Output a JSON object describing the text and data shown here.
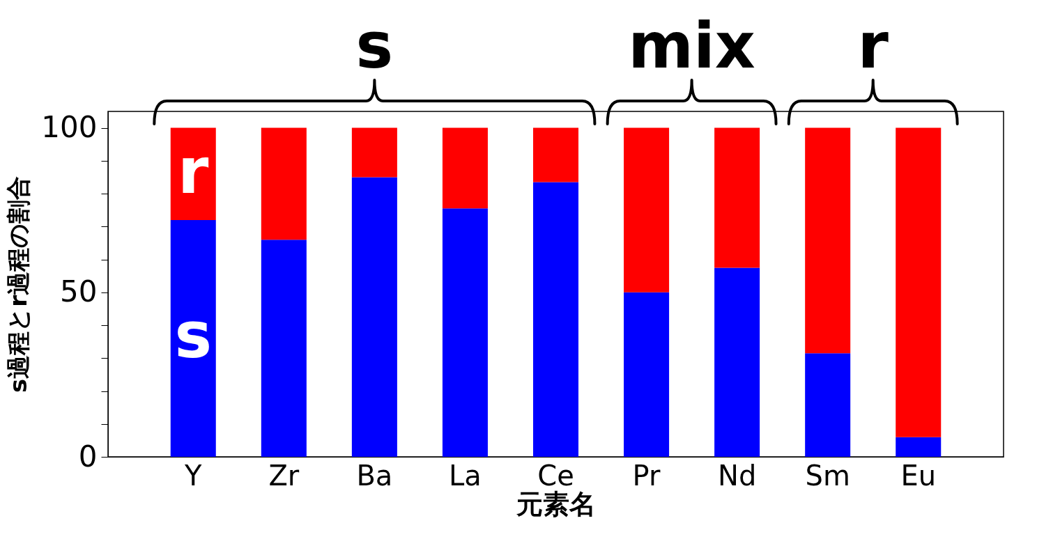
{
  "chart_data": {
    "type": "bar",
    "stacked": true,
    "xlabel": "元素名",
    "ylabel": "s過程とr過程の割合",
    "categories": [
      "Y",
      "Zr",
      "Ba",
      "La",
      "Ce",
      "Pr",
      "Nd",
      "Sm",
      "Eu"
    ],
    "series": [
      {
        "name": "s",
        "color": "#0000ff",
        "values": [
          72,
          66,
          85,
          75.5,
          83.5,
          50,
          57.5,
          31.5,
          6
        ]
      },
      {
        "name": "r",
        "color": "#ff0000",
        "values": [
          28,
          34,
          15,
          24.5,
          16.5,
          50,
          42.5,
          68.5,
          94
        ]
      }
    ],
    "ylim": [
      0,
      105
    ],
    "yticks": [
      0,
      {
        "value": 10,
        "label": null
      },
      {
        "value": 20,
        "label": null
      },
      {
        "value": 30,
        "label": null
      },
      {
        "value": 40,
        "label": null
      },
      50,
      {
        "value": 60,
        "label": null
      },
      {
        "value": 70,
        "label": null
      },
      {
        "value": 80,
        "label": null
      },
      {
        "value": 90,
        "label": null
      },
      100
    ],
    "annotations": [
      "s",
      "mix",
      "r"
    ],
    "grid": false,
    "legend": false
  }
}
